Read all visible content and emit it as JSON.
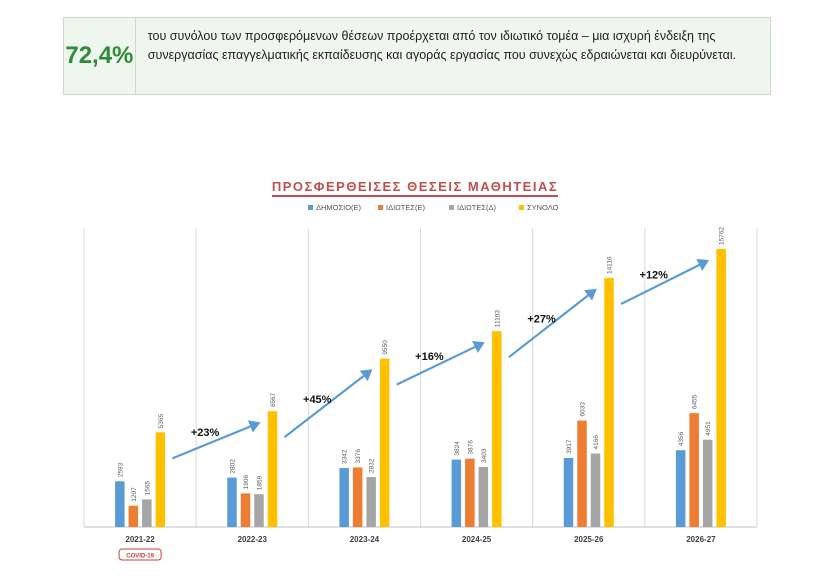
{
  "stat": {
    "value": "72,4%",
    "text": "του συνόλου των προσφερόμενων θέσεων προέρχεται από τον ιδιωτικό τομέα – μια ισχυρή ένδειξη της συνεργασίας επαγγελματικής εκπαίδευσης και αγοράς εργασίας που συνεχώς εδραιώνεται και διευρύνεται."
  },
  "chart_data": {
    "type": "bar",
    "title": "ΠΡΟΣΦΕΡΘΕΙΣΕΣ ΘΕΣΕΙΣ ΜΑΘΗΤΕΙΑΣ",
    "categories": [
      "2021-22",
      "2022-23",
      "2023-24",
      "2024-25",
      "2025-26",
      "2026-27"
    ],
    "series": [
      {
        "name": "ΔΗΜΟΣΙΟ(Ε)",
        "color": "#5b9bd5",
        "values": [
          2593,
          2802,
          3342,
          3824,
          3917,
          4356
        ]
      },
      {
        "name": "ΙΔΙΩΤΕΣ(Ε)",
        "color": "#ed7d31",
        "values": [
          1207,
          1906,
          3376,
          3876,
          6033,
          6455
        ]
      },
      {
        "name": "ΙΔΙΩΤΕΣ(Δ)",
        "color": "#a5a5a5",
        "values": [
          1565,
          1859,
          2832,
          3403,
          4166,
          4951
        ]
      },
      {
        "name": "ΣΥΝΟΛΟ",
        "color": "#ffc000",
        "values": [
          5365,
          6567,
          9550,
          11103,
          14116,
          15762
        ]
      }
    ],
    "growth": [
      "+23%",
      "+45%",
      "+16%",
      "+27%",
      "+12%"
    ],
    "badge": "COVID-19",
    "ylim": [
      0,
      16500
    ],
    "grid": "vertical separators",
    "legend": "top"
  }
}
